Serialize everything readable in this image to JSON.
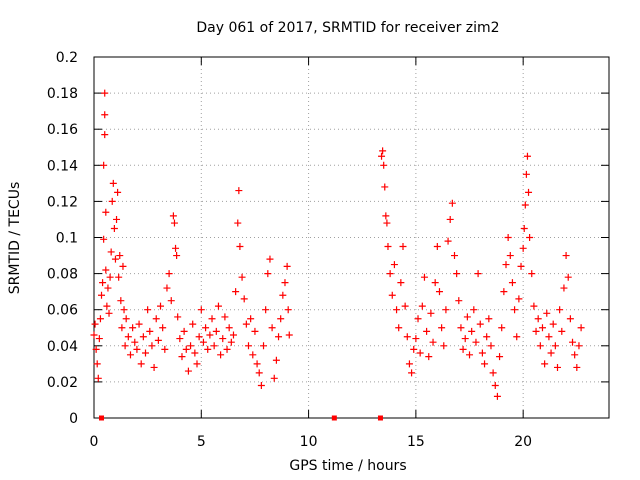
{
  "chart_data": {
    "type": "scatter",
    "title": "Day 061 of 2017, SRMTID for receiver zim2",
    "xlabel": "GPS time / hours",
    "ylabel": "SRMTID / TECUs",
    "xlim": [
      0,
      24
    ],
    "ylim": [
      0,
      0.2
    ],
    "xticks": [
      0,
      5,
      10,
      15,
      20
    ],
    "xtick_labels": [
      "0",
      "5",
      "10",
      "15",
      "20"
    ],
    "yticks": [
      0,
      0.02,
      0.04,
      0.06,
      0.08,
      0.1,
      0.12,
      0.14,
      0.16,
      0.18,
      0.2
    ],
    "ytick_labels": [
      "0",
      "0.02",
      "0.04",
      "0.06",
      "0.08",
      "0.1",
      "0.12",
      "0.14",
      "0.16",
      "0.18",
      "0.2"
    ],
    "grid": true,
    "marker": "+",
    "color": "#ff0000",
    "series": [
      {
        "name": "SRMTID",
        "points": [
          [
            0.0,
            0.046
          ],
          [
            0.05,
            0.052
          ],
          [
            0.1,
            0.038
          ],
          [
            0.15,
            0.03
          ],
          [
            0.2,
            0.022
          ],
          [
            0.25,
            0.044
          ],
          [
            0.3,
            0.055
          ],
          [
            0.35,
            0.068
          ],
          [
            0.4,
            0.075
          ],
          [
            0.45,
            0.099
          ],
          [
            0.45,
            0.14
          ],
          [
            0.5,
            0.157
          ],
          [
            0.5,
            0.168
          ],
          [
            0.5,
            0.18
          ],
          [
            0.55,
            0.114
          ],
          [
            0.55,
            0.082
          ],
          [
            0.6,
            0.062
          ],
          [
            0.65,
            0.072
          ],
          [
            0.7,
            0.058
          ],
          [
            0.75,
            0.078
          ],
          [
            0.8,
            0.092
          ],
          [
            0.85,
            0.12
          ],
          [
            0.9,
            0.13
          ],
          [
            0.95,
            0.105
          ],
          [
            1.0,
            0.088
          ],
          [
            1.05,
            0.11
          ],
          [
            1.1,
            0.125
          ],
          [
            1.15,
            0.078
          ],
          [
            1.2,
            0.09
          ],
          [
            1.25,
            0.065
          ],
          [
            1.3,
            0.05
          ],
          [
            1.35,
            0.084
          ],
          [
            1.4,
            0.06
          ],
          [
            1.45,
            0.04
          ],
          [
            1.5,
            0.055
          ],
          [
            1.6,
            0.045
          ],
          [
            1.7,
            0.035
          ],
          [
            1.8,
            0.05
          ],
          [
            1.9,
            0.042
          ],
          [
            2.0,
            0.038
          ],
          [
            2.1,
            0.052
          ],
          [
            2.2,
            0.03
          ],
          [
            2.3,
            0.045
          ],
          [
            2.4,
            0.036
          ],
          [
            2.5,
            0.06
          ],
          [
            2.6,
            0.048
          ],
          [
            2.7,
            0.04
          ],
          [
            2.8,
            0.028
          ],
          [
            2.9,
            0.055
          ],
          [
            3.0,
            0.043
          ],
          [
            3.1,
            0.062
          ],
          [
            3.2,
            0.05
          ],
          [
            3.3,
            0.038
          ],
          [
            3.4,
            0.072
          ],
          [
            3.5,
            0.08
          ],
          [
            3.6,
            0.065
          ],
          [
            3.7,
            0.112
          ],
          [
            3.75,
            0.108
          ],
          [
            3.8,
            0.094
          ],
          [
            3.85,
            0.09
          ],
          [
            3.9,
            0.056
          ],
          [
            4.0,
            0.044
          ],
          [
            4.1,
            0.034
          ],
          [
            4.2,
            0.048
          ],
          [
            4.3,
            0.038
          ],
          [
            4.4,
            0.026
          ],
          [
            4.5,
            0.04
          ],
          [
            4.6,
            0.052
          ],
          [
            4.7,
            0.036
          ],
          [
            4.8,
            0.03
          ],
          [
            4.9,
            0.045
          ],
          [
            5.0,
            0.06
          ],
          [
            5.1,
            0.042
          ],
          [
            5.2,
            0.05
          ],
          [
            5.3,
            0.038
          ],
          [
            5.4,
            0.046
          ],
          [
            5.5,
            0.055
          ],
          [
            5.6,
            0.04
          ],
          [
            5.7,
            0.048
          ],
          [
            5.8,
            0.062
          ],
          [
            5.9,
            0.035
          ],
          [
            6.0,
            0.044
          ],
          [
            6.1,
            0.056
          ],
          [
            6.2,
            0.038
          ],
          [
            6.3,
            0.05
          ],
          [
            6.4,
            0.042
          ],
          [
            6.5,
            0.046
          ],
          [
            6.6,
            0.07
          ],
          [
            6.7,
            0.108
          ],
          [
            6.75,
            0.126
          ],
          [
            6.8,
            0.095
          ],
          [
            6.9,
            0.078
          ],
          [
            7.0,
            0.066
          ],
          [
            7.1,
            0.052
          ],
          [
            7.2,
            0.04
          ],
          [
            7.3,
            0.055
          ],
          [
            7.4,
            0.035
          ],
          [
            7.5,
            0.048
          ],
          [
            7.6,
            0.03
          ],
          [
            7.7,
            0.025
          ],
          [
            7.8,
            0.018
          ],
          [
            7.9,
            0.04
          ],
          [
            8.0,
            0.06
          ],
          [
            8.1,
            0.08
          ],
          [
            8.2,
            0.088
          ],
          [
            8.3,
            0.05
          ],
          [
            8.4,
            0.022
          ],
          [
            8.5,
            0.032
          ],
          [
            8.6,
            0.045
          ],
          [
            8.7,
            0.055
          ],
          [
            8.8,
            0.068
          ],
          [
            8.9,
            0.075
          ],
          [
            9.0,
            0.084
          ],
          [
            9.05,
            0.06
          ],
          [
            9.1,
            0.046
          ],
          [
            13.4,
            0.145
          ],
          [
            13.45,
            0.148
          ],
          [
            13.5,
            0.14
          ],
          [
            13.55,
            0.128
          ],
          [
            13.6,
            0.112
          ],
          [
            13.65,
            0.108
          ],
          [
            13.7,
            0.095
          ],
          [
            13.8,
            0.08
          ],
          [
            13.9,
            0.068
          ],
          [
            14.0,
            0.085
          ],
          [
            14.1,
            0.06
          ],
          [
            14.2,
            0.05
          ],
          [
            14.3,
            0.075
          ],
          [
            14.4,
            0.095
          ],
          [
            14.5,
            0.062
          ],
          [
            14.6,
            0.045
          ],
          [
            14.7,
            0.03
          ],
          [
            14.8,
            0.025
          ],
          [
            14.9,
            0.038
          ],
          [
            15.0,
            0.044
          ],
          [
            15.1,
            0.055
          ],
          [
            15.2,
            0.036
          ],
          [
            15.3,
            0.062
          ],
          [
            15.4,
            0.078
          ],
          [
            15.5,
            0.048
          ],
          [
            15.6,
            0.034
          ],
          [
            15.7,
            0.058
          ],
          [
            15.8,
            0.042
          ],
          [
            15.9,
            0.075
          ],
          [
            16.0,
            0.095
          ],
          [
            16.1,
            0.07
          ],
          [
            16.2,
            0.05
          ],
          [
            16.3,
            0.04
          ],
          [
            16.4,
            0.06
          ],
          [
            16.5,
            0.098
          ],
          [
            16.6,
            0.11
          ],
          [
            16.7,
            0.119
          ],
          [
            16.8,
            0.09
          ],
          [
            16.9,
            0.08
          ],
          [
            17.0,
            0.065
          ],
          [
            17.1,
            0.05
          ],
          [
            17.2,
            0.038
          ],
          [
            17.3,
            0.044
          ],
          [
            17.4,
            0.056
          ],
          [
            17.5,
            0.035
          ],
          [
            17.6,
            0.048
          ],
          [
            17.7,
            0.06
          ],
          [
            17.8,
            0.042
          ],
          [
            17.9,
            0.08
          ],
          [
            18.0,
            0.052
          ],
          [
            18.1,
            0.036
          ],
          [
            18.2,
            0.03
          ],
          [
            18.3,
            0.045
          ],
          [
            18.4,
            0.055
          ],
          [
            18.5,
            0.04
          ],
          [
            18.6,
            0.025
          ],
          [
            18.7,
            0.018
          ],
          [
            18.8,
            0.012
          ],
          [
            18.9,
            0.034
          ],
          [
            19.0,
            0.05
          ],
          [
            19.1,
            0.07
          ],
          [
            19.2,
            0.085
          ],
          [
            19.3,
            0.1
          ],
          [
            19.4,
            0.09
          ],
          [
            19.5,
            0.075
          ],
          [
            19.6,
            0.06
          ],
          [
            19.7,
            0.045
          ],
          [
            19.8,
            0.066
          ],
          [
            19.9,
            0.084
          ],
          [
            20.0,
            0.094
          ],
          [
            20.05,
            0.105
          ],
          [
            20.1,
            0.118
          ],
          [
            20.15,
            0.135
          ],
          [
            20.2,
            0.145
          ],
          [
            20.25,
            0.125
          ],
          [
            20.3,
            0.1
          ],
          [
            20.4,
            0.08
          ],
          [
            20.5,
            0.062
          ],
          [
            20.6,
            0.048
          ],
          [
            20.7,
            0.055
          ],
          [
            20.8,
            0.04
          ],
          [
            20.9,
            0.05
          ],
          [
            21.0,
            0.03
          ],
          [
            21.1,
            0.058
          ],
          [
            21.2,
            0.045
          ],
          [
            21.3,
            0.036
          ],
          [
            21.4,
            0.052
          ],
          [
            21.5,
            0.04
          ],
          [
            21.6,
            0.028
          ],
          [
            21.7,
            0.06
          ],
          [
            21.8,
            0.048
          ],
          [
            21.9,
            0.072
          ],
          [
            22.0,
            0.09
          ],
          [
            22.1,
            0.078
          ],
          [
            22.2,
            0.055
          ],
          [
            22.3,
            0.042
          ],
          [
            22.4,
            0.035
          ],
          [
            22.5,
            0.028
          ],
          [
            22.6,
            0.04
          ],
          [
            22.7,
            0.05
          ]
        ]
      }
    ],
    "zero_markers_x": [
      0.35,
      11.2,
      13.35
    ]
  }
}
